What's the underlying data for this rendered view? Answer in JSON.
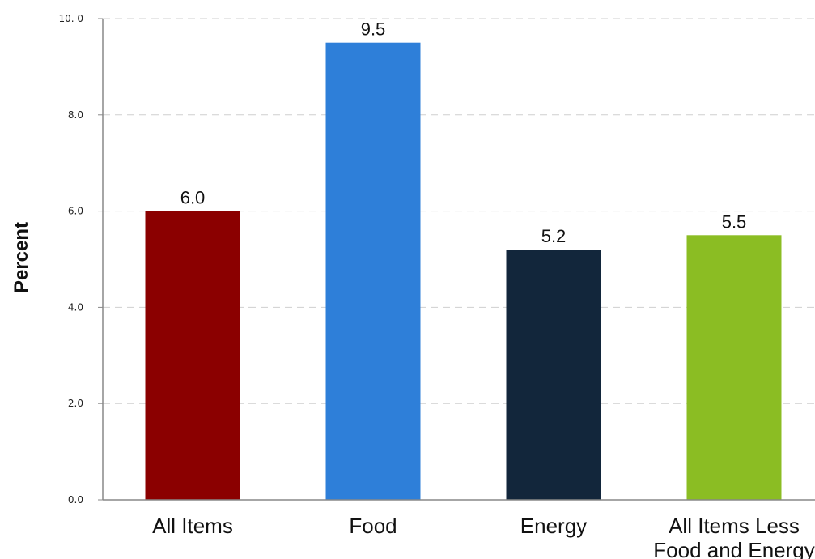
{
  "chart_data": {
    "type": "bar",
    "title": "",
    "xlabel": "",
    "ylabel": "Percent",
    "categories": [
      "All Items",
      "Food",
      "Energy",
      "All Items Less Food and Energy"
    ],
    "category_lines": [
      [
        "All Items"
      ],
      [
        "Food"
      ],
      [
        "Energy"
      ],
      [
        "All Items Less",
        "Food and Energy"
      ]
    ],
    "values": [
      6.0,
      9.5,
      5.2,
      5.5
    ],
    "value_labels": [
      "6.0",
      "9.5",
      "5.2",
      "5.5"
    ],
    "colors": [
      "#8b0000",
      "#2e7fd9",
      "#12263b",
      "#8bbd23"
    ],
    "ylim": [
      0,
      10
    ],
    "yticks": [
      0,
      2,
      4,
      6,
      8,
      10
    ],
    "ytick_labels": [
      "0.0",
      "2.0",
      "4.0",
      "6.0",
      "8.0",
      "10. 0"
    ],
    "grid": true,
    "legend": "none"
  }
}
